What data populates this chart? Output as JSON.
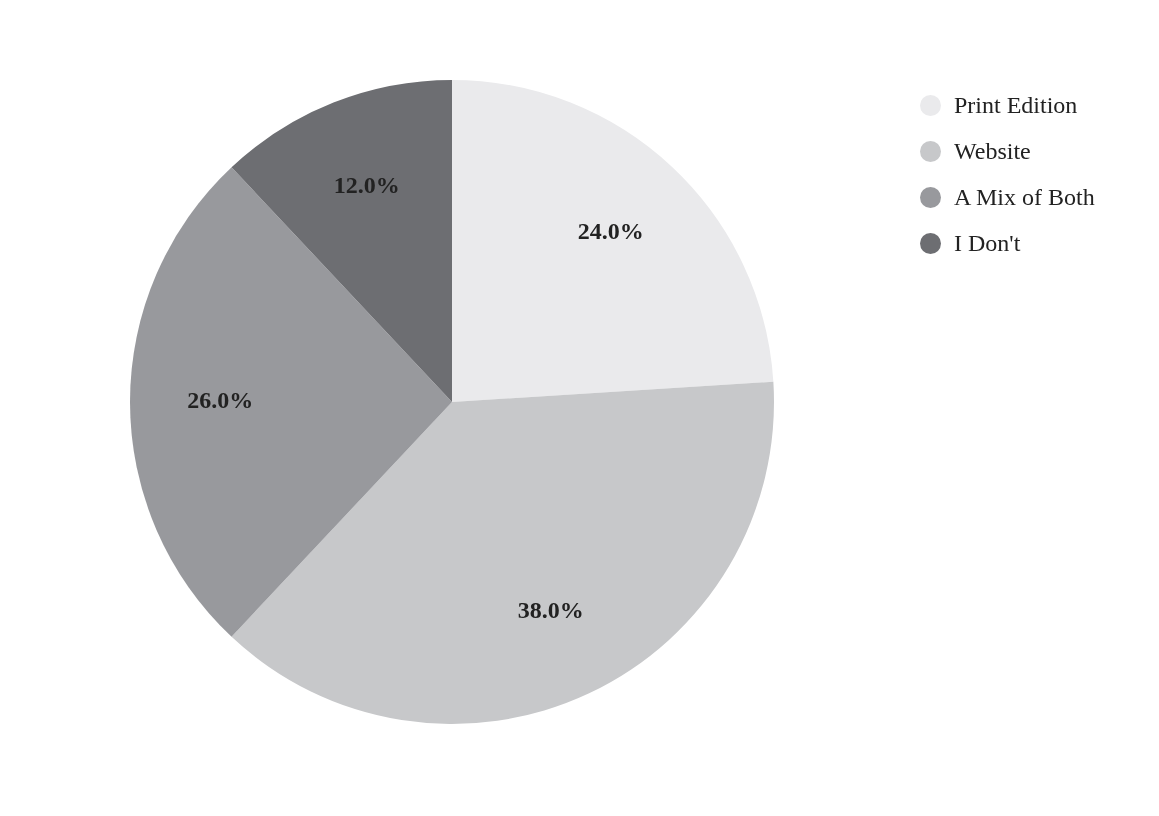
{
  "chart_data": {
    "type": "pie",
    "categories": [
      "Print Edition",
      "Website",
      "A Mix of Both",
      "I Don't"
    ],
    "values": [
      24,
      38,
      26,
      12
    ],
    "colors": [
      "#eaeaec",
      "#c7c8ca",
      "#98999d",
      "#6d6e72"
    ],
    "value_labels": [
      "24.0%",
      "38.0%",
      "26.0%",
      "12.0%"
    ],
    "legend": "top right"
  }
}
